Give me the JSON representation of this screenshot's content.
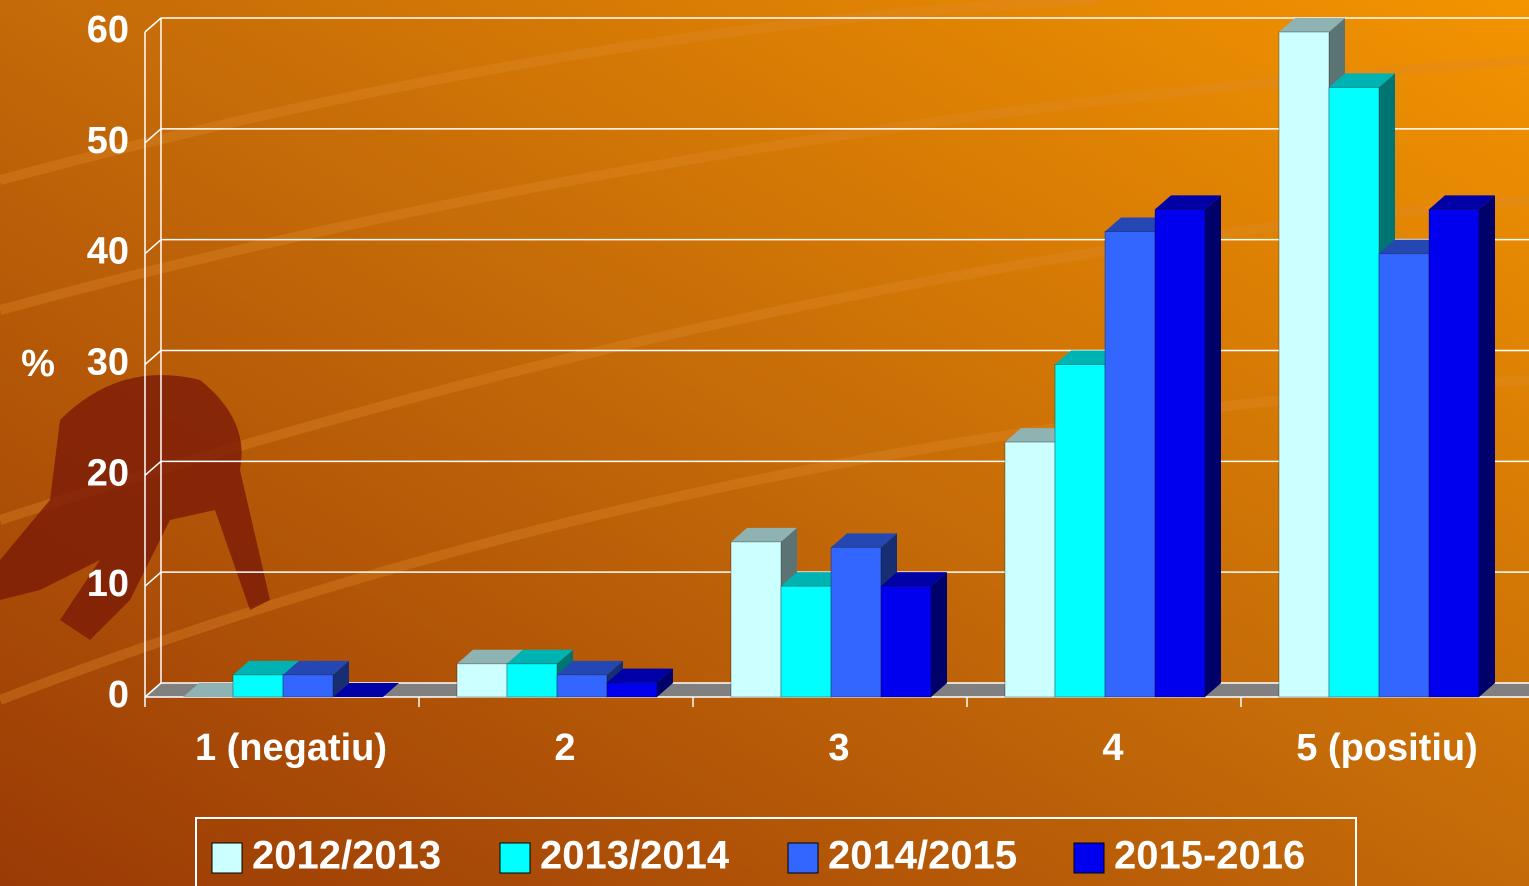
{
  "chart_data": {
    "type": "bar3d",
    "y_label": "%",
    "categories": [
      "1 (negatiu)",
      "2",
      "3",
      "4",
      "5 (positiu)"
    ],
    "series": [
      {
        "name": "2012/2013",
        "color": "#ccffff",
        "values": [
          0,
          3,
          14,
          23,
          60
        ]
      },
      {
        "name": "2013/2014",
        "color": "#00ffff",
        "values": [
          2,
          3,
          10,
          30,
          55
        ]
      },
      {
        "name": "2014/2015",
        "color": "#3366ff",
        "values": [
          2,
          2,
          13.5,
          42,
          40
        ]
      },
      {
        "name": "2015-2016",
        "color": "#0000ee",
        "values": [
          0,
          1.3,
          10,
          44,
          44
        ]
      }
    ],
    "ylim": [
      0,
      60
    ],
    "yticks": [
      0,
      10,
      20,
      30,
      40,
      50,
      60
    ],
    "grid": true
  }
}
